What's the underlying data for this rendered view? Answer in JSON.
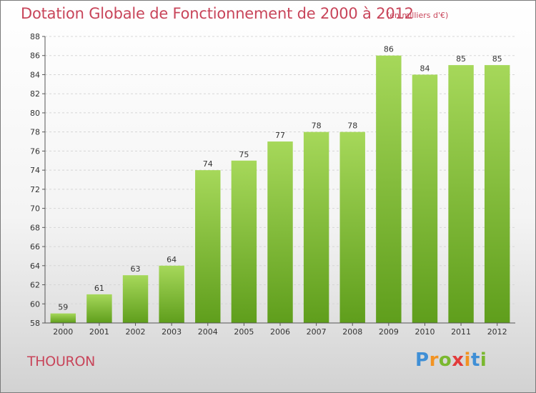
{
  "title": "Dotation Globale de Fonctionnement de 2000 à 2012",
  "unit": "(en milliers d'€)",
  "commune": "THOURON",
  "logo": {
    "letters": [
      "P",
      "r",
      "o",
      "x",
      "i",
      "t",
      "i"
    ],
    "colors": [
      "#3f8fd6",
      "#f29322",
      "#7ab82f",
      "#e23b3b",
      "#f29322",
      "#3f8fd6",
      "#7ab82f"
    ]
  },
  "colors": {
    "bar": "#7dbb30",
    "bar_light": "#a6d85a",
    "title": "#c8455a"
  },
  "chart_data": {
    "type": "bar",
    "title": "Dotation Globale de Fonctionnement de 2000 à 2012",
    "categories": [
      "2000",
      "2001",
      "2002",
      "2003",
      "2004",
      "2005",
      "2006",
      "2007",
      "2008",
      "2009",
      "2010",
      "2011",
      "2012"
    ],
    "values": [
      59,
      61,
      63,
      64,
      74,
      75,
      77,
      78,
      78,
      86,
      84,
      85,
      85
    ],
    "ylim": [
      58,
      88
    ],
    "yticks": [
      58,
      60,
      62,
      64,
      66,
      68,
      70,
      72,
      74,
      76,
      78,
      80,
      82,
      84,
      86,
      88
    ],
    "grid": true
  }
}
